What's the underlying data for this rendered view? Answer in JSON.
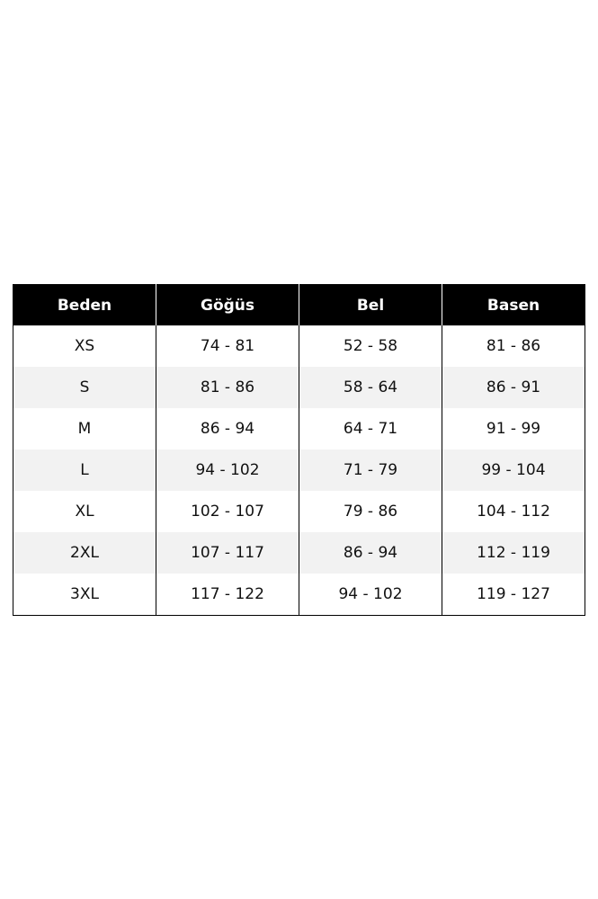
{
  "table": {
    "header": [
      "Beden",
      "Göğüs",
      "Bel",
      "Basen"
    ],
    "rows": [
      [
        "XS",
        "74 - 81",
        "52 - 58",
        "81 - 86"
      ],
      [
        "S",
        "81 - 86",
        "58 - 64",
        "86 - 91"
      ],
      [
        "M",
        "86 - 94",
        "64 - 71",
        "91 - 99"
      ],
      [
        "L",
        "94 - 102",
        "71 - 79",
        "99 - 104"
      ],
      [
        "XL",
        "102 - 107",
        "79 - 86",
        "104 - 112"
      ],
      [
        "2XL",
        "107 - 117",
        "86 - 94",
        "112 - 119"
      ],
      [
        "3XL",
        "117 - 122",
        "94 - 102",
        "119 - 127"
      ]
    ]
  }
}
